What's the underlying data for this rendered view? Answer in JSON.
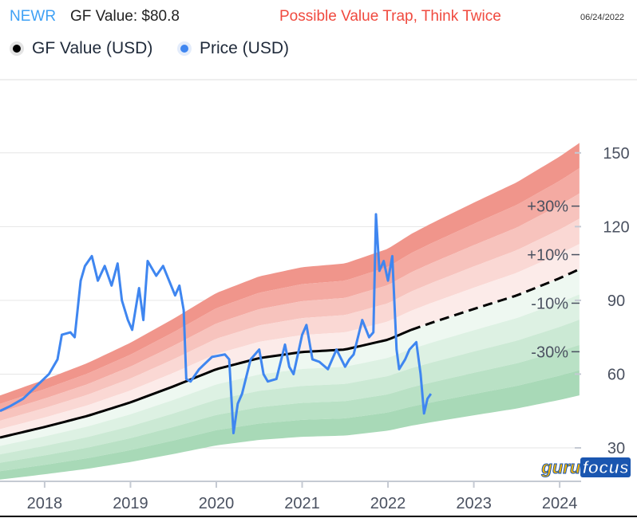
{
  "header": {
    "ticker": "NEWR",
    "gf_value": "GF Value: $80.8",
    "warning": "Possible Value Trap, Think Twice",
    "date": "06/24/2022"
  },
  "legend": [
    {
      "label": "GF Value (USD)",
      "color": "#000000"
    },
    {
      "label": "Price (USD)",
      "color": "#3f86f0"
    }
  ],
  "logo": {
    "part1": "guru",
    "part2": "focus"
  },
  "chart_data": {
    "type": "line",
    "title": "NEWR GF Value: $80.8",
    "xlabel": "",
    "ylabel": "",
    "xlim": [
      2017.48,
      2024.25
    ],
    "ylim": [
      16,
      180
    ],
    "x_ticks": [
      "2018",
      "2019",
      "2020",
      "2021",
      "2022",
      "2023",
      "2024"
    ],
    "y_ticks": [
      "30",
      "60",
      "90",
      "120",
      "150"
    ],
    "band_labels": [
      {
        "text": "+30%",
        "mult": 1.3
      },
      {
        "text": "+10%",
        "mult": 1.1
      },
      {
        "text": "-10%",
        "mult": 0.9
      },
      {
        "text": "-30%",
        "mult": 0.7
      }
    ],
    "band_multipliers": [
      1.5,
      1.4,
      1.3,
      1.2,
      1.1,
      1.0,
      0.9,
      0.8,
      0.7,
      0.6,
      0.5
    ],
    "gf_value": {
      "name": "GF Value (USD)",
      "projection_start": 2022.27,
      "x": [
        2017.48,
        2018,
        2018.5,
        2019,
        2019.5,
        2020,
        2020.5,
        2021,
        2021.5,
        2022,
        2022.27,
        2022.5,
        2023,
        2023.5,
        2024,
        2024.25
      ],
      "y": [
        34.2,
        38.5,
        43,
        48.5,
        55,
        62,
        66.5,
        69,
        70,
        74,
        78,
        80.8,
        86.5,
        92,
        99,
        103
      ]
    },
    "price": {
      "name": "Price (USD)",
      "x": [
        2017.48,
        2017.6,
        2017.75,
        2017.9,
        2018.05,
        2018.15,
        2018.2,
        2018.3,
        2018.35,
        2018.42,
        2018.47,
        2018.55,
        2018.62,
        2018.7,
        2018.78,
        2018.85,
        2018.9,
        2018.97,
        2019.02,
        2019.1,
        2019.15,
        2019.2,
        2019.3,
        2019.38,
        2019.45,
        2019.52,
        2019.57,
        2019.62,
        2019.65,
        2019.7,
        2019.8,
        2019.95,
        2020.1,
        2020.15,
        2020.2,
        2020.25,
        2020.3,
        2020.4,
        2020.5,
        2020.55,
        2020.6,
        2020.7,
        2020.8,
        2020.85,
        2020.9,
        2021.0,
        2021.05,
        2021.12,
        2021.2,
        2021.3,
        2021.4,
        2021.5,
        2021.55,
        2021.6,
        2021.7,
        2021.78,
        2021.83,
        2021.86,
        2021.9,
        2021.95,
        2022.0,
        2022.05,
        2022.1,
        2022.13,
        2022.2,
        2022.25,
        2022.33,
        2022.38,
        2022.42,
        2022.46,
        2022.5
      ],
      "y": [
        45,
        47,
        50,
        55,
        60,
        66,
        76,
        77,
        75,
        98,
        104,
        108,
        98,
        104,
        96,
        105,
        90,
        82,
        78,
        95,
        82,
        106,
        100,
        104,
        98,
        92,
        96,
        86,
        58,
        57,
        62,
        67,
        68,
        66,
        36,
        48,
        52,
        66,
        70,
        60,
        57,
        58,
        72,
        63,
        60,
        76,
        80,
        66,
        65,
        62,
        70,
        63,
        66,
        68,
        82,
        75,
        77,
        125,
        102,
        106,
        98,
        108,
        70,
        62,
        66,
        70,
        73,
        60,
        44,
        50,
        52
      ]
    }
  }
}
